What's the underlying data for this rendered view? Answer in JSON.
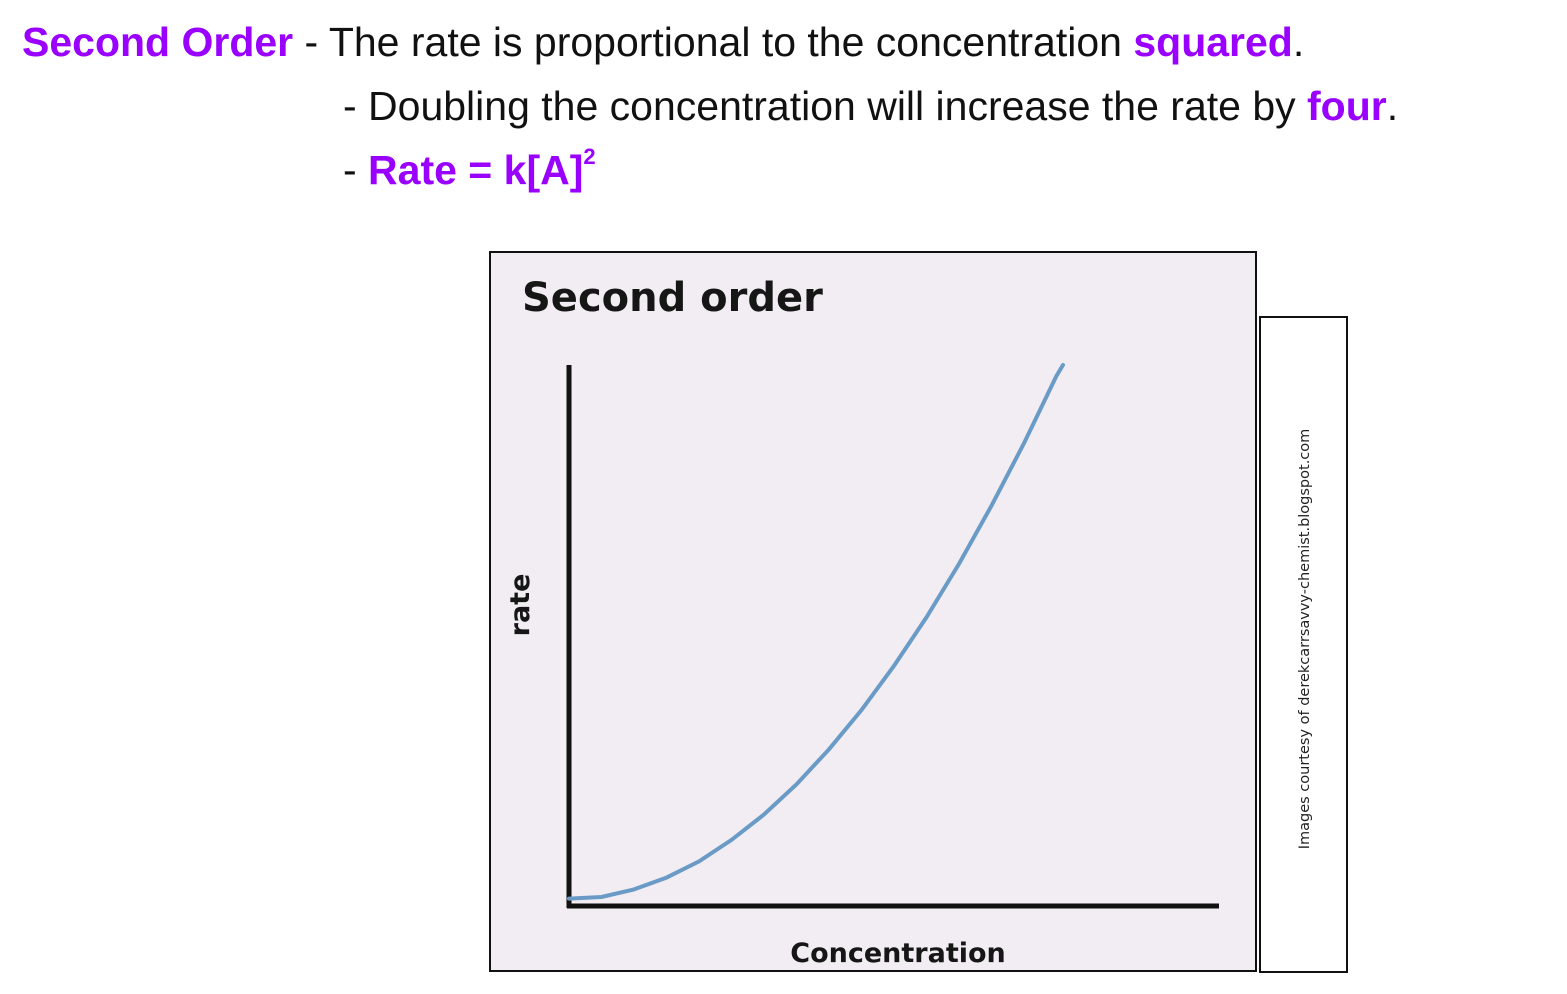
{
  "text": {
    "line1": {
      "term": "Second Order",
      "desc_before": " - The rate is proportional to the concentration ",
      "emphasis": "squared",
      "end": "."
    },
    "line2": {
      "desc_before": "- Doubling the concentration will increase the rate by ",
      "emphasis": "four",
      "end": "."
    },
    "line3": {
      "dash": "- ",
      "formula": "Rate = k[A]",
      "exponent": "2"
    }
  },
  "credit": "Images courtesy of derekcarrsavvy-chemist.blogspot.com",
  "colors": {
    "highlight": "#9900ff",
    "curve": "#6a9bc6",
    "panel_bg": "#f1edf2",
    "axis": "#111111"
  },
  "chart_data": {
    "type": "line",
    "title": "Second order",
    "xlabel": "Concentration",
    "ylabel": "rate",
    "grid": false,
    "ticks": false,
    "xlim": [
      0,
      1
    ],
    "ylim": [
      0,
      1
    ],
    "series": [
      {
        "x": [
          0.0,
          0.05,
          0.1,
          0.15,
          0.2,
          0.25,
          0.3,
          0.35,
          0.4,
          0.45,
          0.5,
          0.55,
          0.6,
          0.65,
          0.7,
          0.75,
          0.76
        ],
        "y": [
          0.01,
          0.013,
          0.027,
          0.049,
          0.079,
          0.119,
          0.166,
          0.222,
          0.287,
          0.36,
          0.442,
          0.532,
          0.631,
          0.739,
          0.855,
          0.98,
          1.0
        ]
      }
    ]
  }
}
